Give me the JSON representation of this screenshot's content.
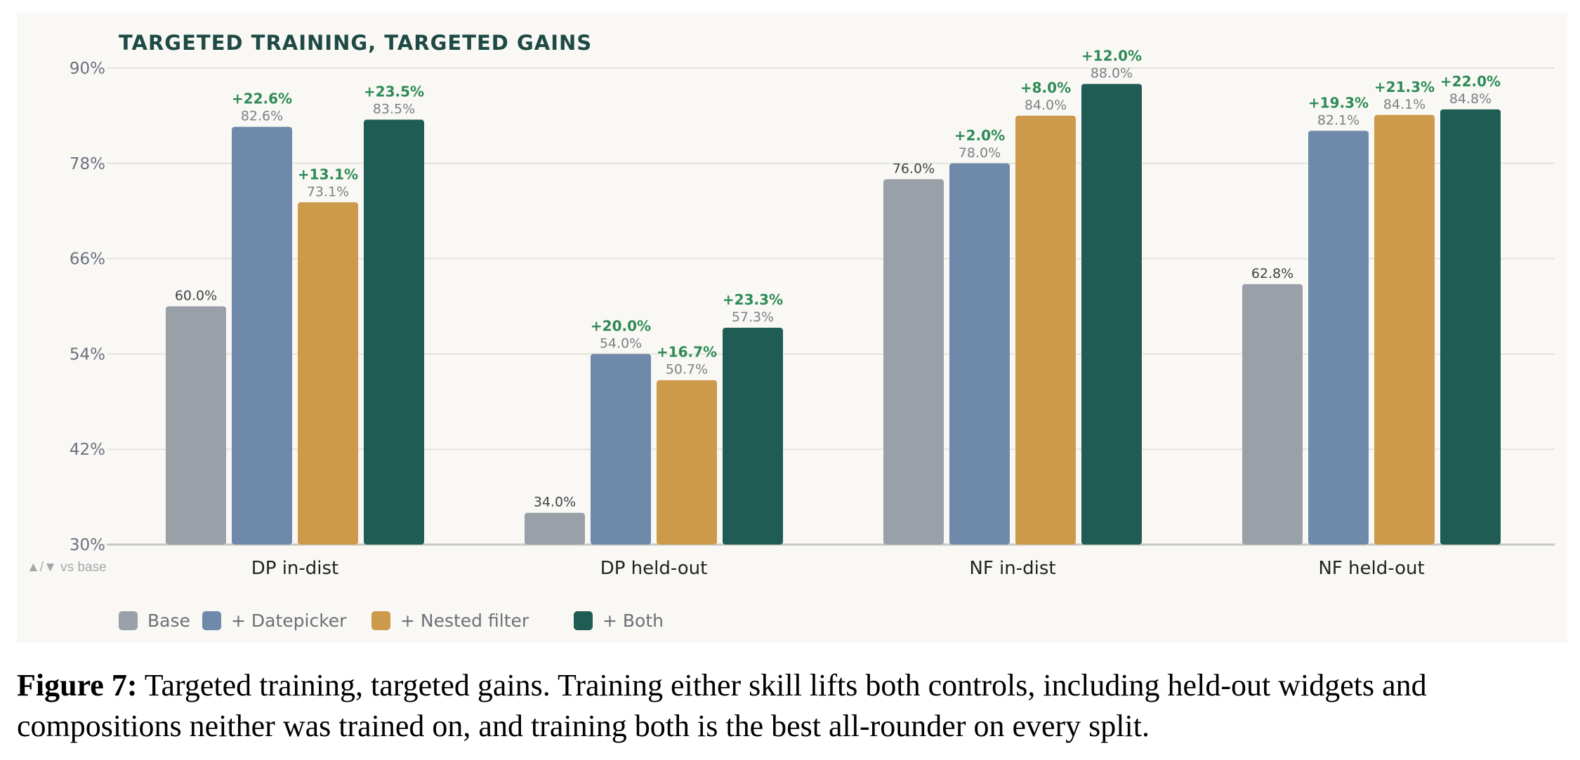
{
  "chart_data": {
    "type": "bar",
    "title": "TARGETED TRAINING, TARGETED GAINS",
    "categories": [
      "DP in-dist",
      "DP held-out",
      "NF in-dist",
      "NF held-out"
    ],
    "series": [
      {
        "name": "Base",
        "color": "#9aa0a8",
        "values": [
          60.0,
          34.0,
          76.0,
          62.8
        ],
        "value_labels": [
          "60.0%",
          "34.0%",
          "76.0%",
          "62.8%"
        ],
        "delta_labels": [
          "",
          "",
          "",
          ""
        ]
      },
      {
        "name": "+ Datepicker",
        "color": "#6f89ab",
        "values": [
          82.6,
          54.0,
          78.0,
          82.1
        ],
        "value_labels": [
          "82.6%",
          "54.0%",
          "78.0%",
          "82.1%"
        ],
        "delta_labels": [
          "+22.6%",
          "+20.0%",
          "+2.0%",
          "+19.3%"
        ]
      },
      {
        "name": "+ Nested filter",
        "color": "#cd9a4b",
        "values": [
          73.1,
          50.7,
          84.0,
          84.1
        ],
        "value_labels": [
          "73.1%",
          "50.7%",
          "84.0%",
          "84.1%"
        ],
        "delta_labels": [
          "+13.1%",
          "+16.7%",
          "+8.0%",
          "+21.3%"
        ]
      },
      {
        "name": "+ Both",
        "color": "#1e5c54",
        "values": [
          83.5,
          57.3,
          88.0,
          84.8
        ],
        "value_labels": [
          "83.5%",
          "57.3%",
          "88.0%",
          "84.8%"
        ],
        "delta_labels": [
          "+23.5%",
          "+23.3%",
          "+12.0%",
          "+22.0%"
        ]
      }
    ],
    "yticks": [
      30,
      42,
      54,
      66,
      78,
      90
    ],
    "ytick_labels": [
      "30%",
      "42%",
      "54%",
      "66%",
      "78%",
      "90%"
    ],
    "ylim": [
      30,
      90
    ],
    "grid": true,
    "legend_position": "bottom-left",
    "axis_note": "▲/▼ vs base",
    "delta_color": "#2e8b57"
  },
  "caption": {
    "label": "Figure 7:",
    "text": " Targeted training, targeted gains. Training either skill lifts both controls, including held-out widgets and compositions neither was trained on, and training both is the best all-rounder on every split."
  }
}
